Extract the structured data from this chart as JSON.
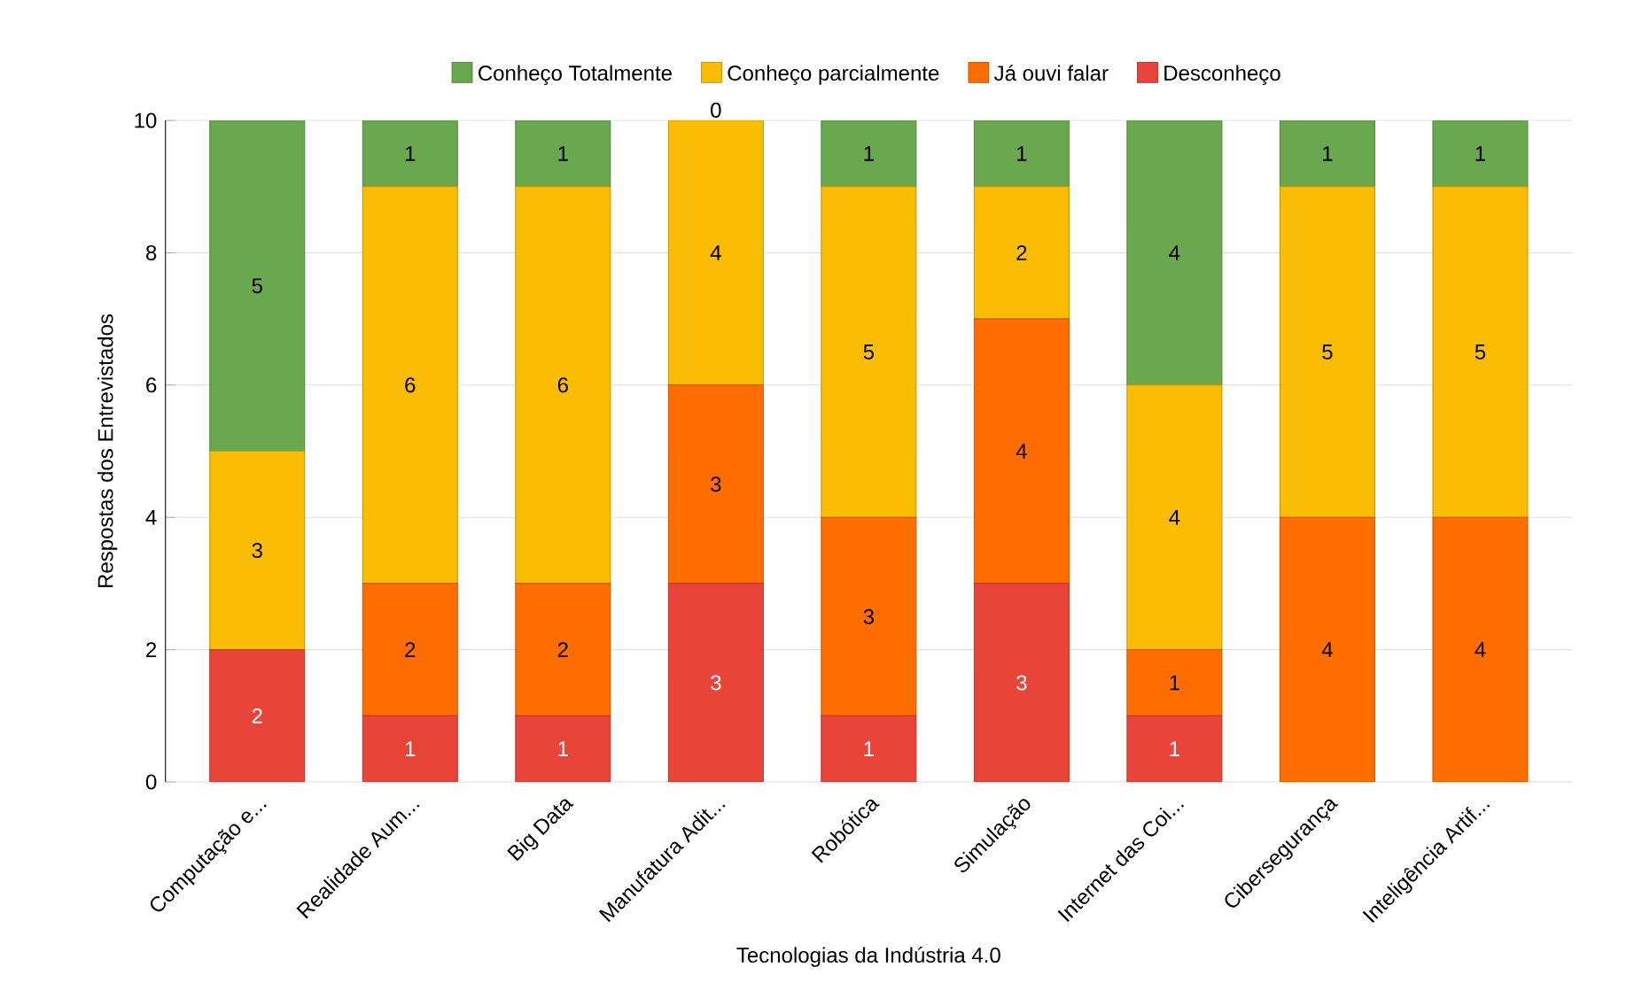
{
  "chart_data": {
    "type": "bar",
    "stacked": true,
    "xlabel": "Tecnologias da Indústria 4.0",
    "ylabel": "Respostas dos Entrevistados",
    "categories": [
      "Computação e...",
      "Realidade Aum...",
      "Big Data",
      "Manufatura Adit...",
      "Robótica",
      "Simulação",
      "Internet das Coi...",
      "Cibersegurança",
      "Inteligência Artif..."
    ],
    "series": [
      {
        "name": "Desconheço",
        "color": "#e8443a",
        "values": [
          2,
          1,
          1,
          3,
          1,
          3,
          1,
          0,
          0
        ],
        "value_labels": [
          "2",
          "1",
          "1",
          "3",
          "1",
          "3",
          "1",
          null,
          null
        ]
      },
      {
        "name": "Já ouvi falar",
        "color": "#ff6d01",
        "values": [
          0,
          2,
          2,
          3,
          3,
          4,
          1,
          4,
          4
        ],
        "value_labels": [
          null,
          "2",
          "2",
          "3",
          "3",
          "4",
          "1",
          "4",
          "4"
        ]
      },
      {
        "name": "Conheço parcialmente",
        "color": "#fbbc04",
        "values": [
          3,
          6,
          6,
          4,
          5,
          2,
          4,
          5,
          5
        ],
        "value_labels": [
          "3",
          "6",
          "6",
          "4",
          "5",
          "2",
          "4",
          "5",
          "5"
        ]
      },
      {
        "name": "Conheço Totalmente",
        "color": "#6aa84f",
        "values": [
          5,
          1,
          1,
          0,
          1,
          1,
          4,
          1,
          1
        ],
        "value_labels": [
          "5",
          "1",
          "1",
          "0",
          "1",
          "1",
          "4",
          "1",
          "1"
        ]
      }
    ],
    "ylim": [
      0,
      10
    ],
    "yticks": [
      0,
      2,
      4,
      6,
      8,
      10
    ],
    "grid": "y",
    "legend": "top"
  }
}
